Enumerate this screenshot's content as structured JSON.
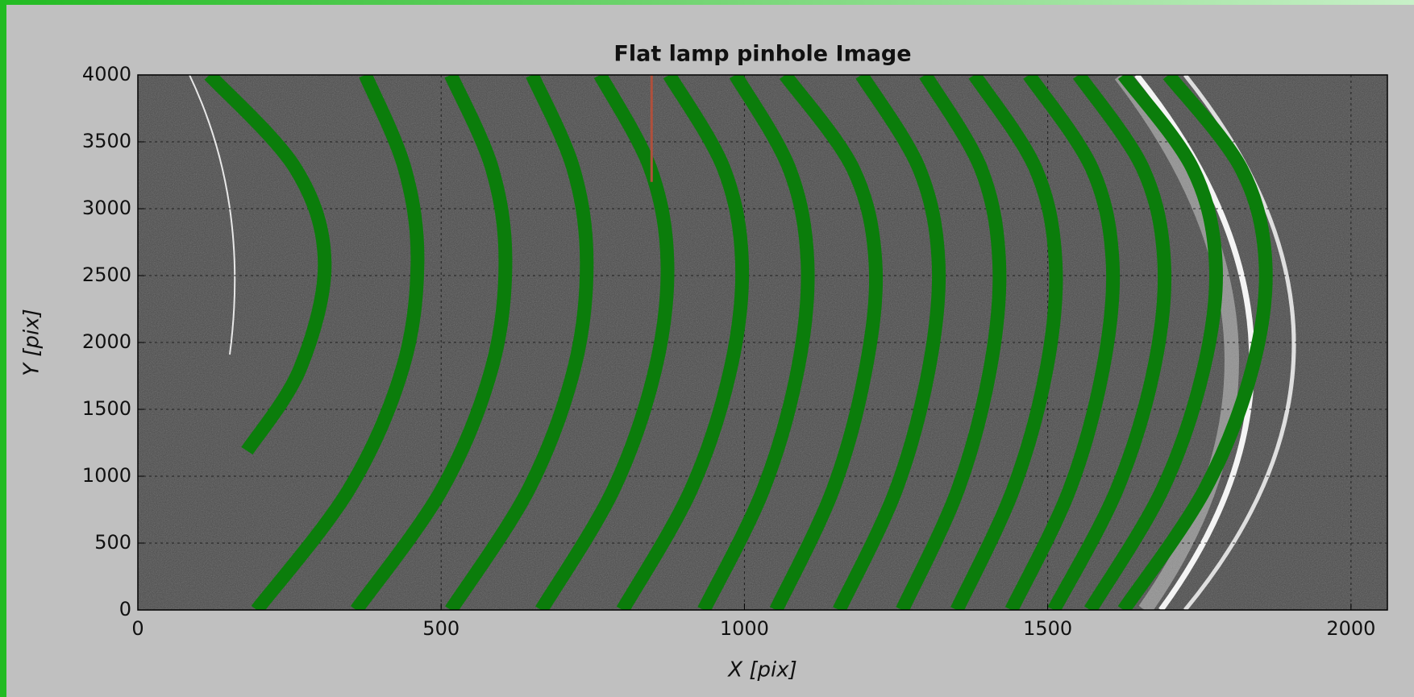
{
  "chart_data": {
    "type": "line",
    "title": "Flat lamp pinhole Image",
    "xlabel": "X [pix]",
    "ylabel": "Y [pix]",
    "xlim": [
      0,
      2060
    ],
    "ylim": [
      0,
      4000
    ],
    "xticks": [
      0,
      500,
      1000,
      1500,
      2000
    ],
    "yticks": [
      0,
      500,
      1000,
      1500,
      2000,
      2500,
      3000,
      3500,
      4000
    ],
    "grid": true,
    "series": [
      {
        "color": "#0b7d0b",
        "x": [
          118,
          260,
          308,
          267,
          180
        ],
        "y": [
          4000,
          3300,
          2600,
          1800,
          1190
        ]
      },
      {
        "color": "#0b7d0b",
        "x": [
          375,
          440,
          461,
          436,
          348,
          196
        ],
        "y": [
          4000,
          3300,
          2600,
          1800,
          900,
          0
        ]
      },
      {
        "color": "#0b7d0b",
        "x": [
          516,
          584,
          606,
          583,
          501,
          360
        ],
        "y": [
          4000,
          3300,
          2600,
          1800,
          900,
          0
        ]
      },
      {
        "color": "#0b7d0b",
        "x": [
          650,
          718,
          740,
          719,
          644,
          516
        ],
        "y": [
          4000,
          3300,
          2600,
          1800,
          900,
          0
        ]
      },
      {
        "color": "#0b7d0b",
        "x": [
          762,
          845,
          873,
          853,
          784,
          665
        ],
        "y": [
          4000,
          3300,
          2600,
          1800,
          900,
          0
        ]
      },
      {
        "color": "#0b7d0b",
        "x": [
          876,
          966,
          996,
          977,
          912,
          799
        ],
        "y": [
          4000,
          3300,
          2600,
          1800,
          900,
          0
        ]
      },
      {
        "color": "#0b7d0b",
        "x": [
          985,
          1074,
          1104,
          1088,
          1031,
          933
        ],
        "y": [
          4000,
          3300,
          2600,
          1800,
          900,
          0
        ]
      },
      {
        "color": "#0b7d0b",
        "x": [
          1067,
          1179,
          1216,
          1200,
          1146,
          1052
        ],
        "y": [
          4000,
          3300,
          2600,
          1800,
          900,
          0
        ]
      },
      {
        "color": "#0b7d0b",
        "x": [
          1193,
          1288,
          1320,
          1304,
          1250,
          1156
        ],
        "y": [
          4000,
          3300,
          2600,
          1800,
          900,
          0
        ]
      },
      {
        "color": "#0b7d0b",
        "x": [
          1298,
          1390,
          1420,
          1405,
          1352,
          1260
        ],
        "y": [
          4000,
          3300,
          2600,
          1800,
          900,
          0
        ]
      },
      {
        "color": "#0b7d0b",
        "x": [
          1379,
          1480,
          1513,
          1498,
          1443,
          1350
        ],
        "y": [
          4000,
          3300,
          2600,
          1800,
          900,
          0
        ]
      },
      {
        "color": "#0b7d0b",
        "x": [
          1469,
          1573,
          1607,
          1591,
          1536,
          1440
        ],
        "y": [
          4000,
          3300,
          2600,
          1800,
          900,
          0
        ]
      },
      {
        "color": "#0b7d0b",
        "x": [
          1551,
          1657,
          1692,
          1675,
          1614,
          1510
        ],
        "y": [
          4000,
          3300,
          2600,
          1800,
          900,
          0
        ]
      },
      {
        "color": "#0b7d0b",
        "x": [
          1625,
          1739,
          1777,
          1757,
          1689,
          1570
        ],
        "y": [
          4000,
          3300,
          2600,
          1800,
          900,
          0
        ]
      },
      {
        "color": "#0b7d0b",
        "x": [
          1699,
          1819,
          1859,
          1837,
          1759,
          1625
        ],
        "y": [
          4000,
          3300,
          2600,
          1800,
          900,
          0
        ]
      },
      {
        "color": "#b0503c",
        "x": [
          847,
          847
        ],
        "y": [
          4000,
          3200
        ]
      }
    ]
  }
}
